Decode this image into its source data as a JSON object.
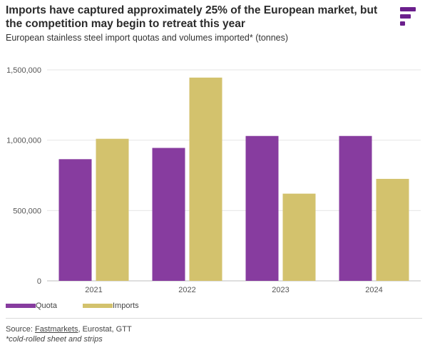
{
  "header": {
    "title": "Imports have captured approximately 25% of the European market, but the competition may begin to retreat this year",
    "subtitle": "European stainless steel import quotas and volumes imported* (tonnes)"
  },
  "logo": {
    "icon": "fastmarkets-logo-icon",
    "color": "#6b1f8c"
  },
  "chart_data": {
    "type": "bar",
    "categories": [
      "2021",
      "2022",
      "2023",
      "2024"
    ],
    "series": [
      {
        "name": "Quota",
        "color": "#873c9f",
        "values": [
          865000,
          945000,
          1030000,
          1030000
        ]
      },
      {
        "name": "Imports",
        "color": "#d3c26d",
        "values": [
          1010000,
          1445000,
          620000,
          725000
        ]
      }
    ],
    "y_ticks": [
      0,
      500000,
      1000000,
      1500000
    ],
    "y_tick_labels": [
      "0",
      "500,000",
      "1,000,000",
      "1,500,000"
    ],
    "ylim": [
      0,
      1500000
    ],
    "grid": true,
    "legend_position": "bottom-left"
  },
  "footer": {
    "source_prefix": "Source: ",
    "source_link": "Fastmarkets",
    "source_rest": ", Eurostat, GTT",
    "footnote": "*cold-rolled sheet and strips"
  }
}
